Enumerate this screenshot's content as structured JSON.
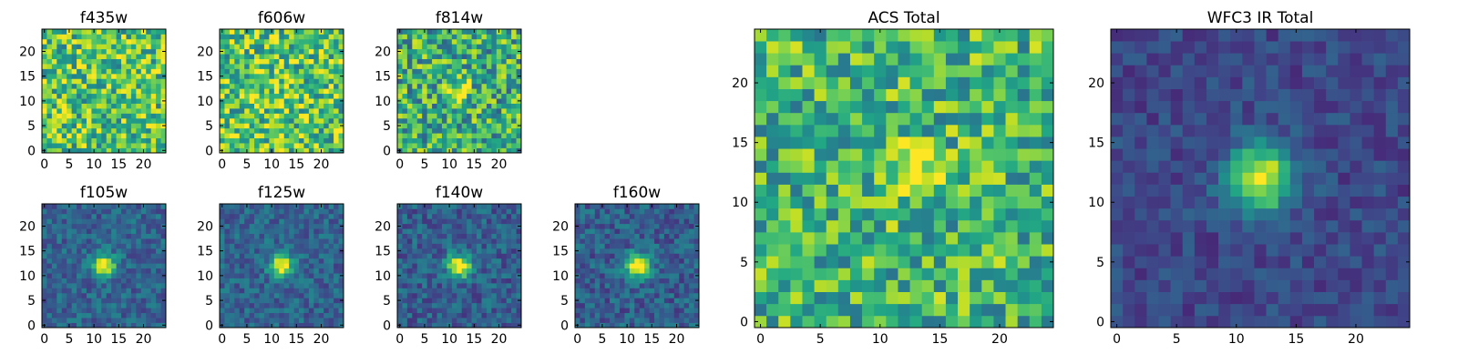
{
  "chart_data": [
    {
      "type": "heatmap",
      "title": "f435w",
      "colormap": "viridis",
      "grid_size": 25,
      "xlim": [
        0,
        24
      ],
      "ylim": [
        0,
        24
      ],
      "xticks": [
        0,
        5,
        10,
        15,
        20
      ],
      "yticks": [
        0,
        5,
        10,
        15,
        20
      ],
      "source_center": [
        12,
        12
      ],
      "source_peak": 0.0,
      "source_width": 2.0,
      "noise_mean": 0.72,
      "noise_amp": 0.32
    },
    {
      "type": "heatmap",
      "title": "f606w",
      "colormap": "viridis",
      "grid_size": 25,
      "xlim": [
        0,
        24
      ],
      "ylim": [
        0,
        24
      ],
      "xticks": [
        0,
        5,
        10,
        15,
        20
      ],
      "yticks": [
        0,
        5,
        10,
        15,
        20
      ],
      "source_center": [
        12,
        12
      ],
      "source_peak": 0.1,
      "source_width": 2.0,
      "noise_mean": 0.72,
      "noise_amp": 0.32
    },
    {
      "type": "heatmap",
      "title": "f814w",
      "colormap": "viridis",
      "grid_size": 25,
      "xlim": [
        0,
        24
      ],
      "ylim": [
        0,
        24
      ],
      "xticks": [
        0,
        5,
        10,
        15,
        20
      ],
      "yticks": [
        0,
        5,
        10,
        15,
        20
      ],
      "source_center": [
        12,
        12
      ],
      "source_peak": 0.35,
      "source_width": 1.6,
      "noise_mean": 0.62,
      "noise_amp": 0.32
    },
    {
      "type": "heatmap",
      "title": "f105w",
      "colormap": "viridis",
      "grid_size": 25,
      "xlim": [
        0,
        24
      ],
      "ylim": [
        0,
        24
      ],
      "xticks": [
        0,
        5,
        10,
        15,
        20
      ],
      "yticks": [
        0,
        5,
        10,
        15,
        20
      ],
      "source_center": [
        12,
        12
      ],
      "source_peak": 0.75,
      "source_width": 1.6,
      "noise_mean": 0.32,
      "noise_amp": 0.14
    },
    {
      "type": "heatmap",
      "title": "f125w",
      "colormap": "viridis",
      "grid_size": 25,
      "xlim": [
        0,
        24
      ],
      "ylim": [
        0,
        24
      ],
      "xticks": [
        0,
        5,
        10,
        15,
        20
      ],
      "yticks": [
        0,
        5,
        10,
        15,
        20
      ],
      "source_center": [
        12,
        12
      ],
      "source_peak": 0.75,
      "source_width": 1.6,
      "noise_mean": 0.32,
      "noise_amp": 0.14
    },
    {
      "type": "heatmap",
      "title": "f140w",
      "colormap": "viridis",
      "grid_size": 25,
      "xlim": [
        0,
        24
      ],
      "ylim": [
        0,
        24
      ],
      "xticks": [
        0,
        5,
        10,
        15,
        20
      ],
      "yticks": [
        0,
        5,
        10,
        15,
        20
      ],
      "source_center": [
        12,
        12
      ],
      "source_peak": 0.75,
      "source_width": 1.7,
      "noise_mean": 0.3,
      "noise_amp": 0.15
    },
    {
      "type": "heatmap",
      "title": "f160w",
      "colormap": "viridis",
      "grid_size": 25,
      "xlim": [
        0,
        24
      ],
      "ylim": [
        0,
        24
      ],
      "xticks": [
        0,
        5,
        10,
        15,
        20
      ],
      "yticks": [
        0,
        5,
        10,
        15,
        20
      ],
      "source_center": [
        12,
        12
      ],
      "source_peak": 0.75,
      "source_width": 1.7,
      "noise_mean": 0.3,
      "noise_amp": 0.15
    },
    {
      "type": "heatmap",
      "title": "ACS Total",
      "colormap": "viridis",
      "grid_size": 25,
      "xlim": [
        0,
        24
      ],
      "ylim": [
        0,
        24
      ],
      "xticks": [
        0,
        5,
        10,
        15,
        20
      ],
      "yticks": [
        0,
        5,
        10,
        15,
        20
      ],
      "source_center": [
        12.5,
        12.5
      ],
      "source_peak": 0.35,
      "source_width": 1.6,
      "noise_mean": 0.66,
      "noise_amp": 0.28
    },
    {
      "type": "heatmap",
      "title": "WFC3 IR Total",
      "colormap": "viridis",
      "grid_size": 25,
      "xlim": [
        0,
        24
      ],
      "ylim": [
        0,
        24
      ],
      "xticks": [
        0,
        5,
        10,
        15,
        20
      ],
      "yticks": [
        0,
        5,
        10,
        15,
        20
      ],
      "source_center": [
        12,
        12
      ],
      "source_peak": 0.78,
      "source_width": 1.9,
      "noise_mean": 0.22,
      "noise_amp": 0.1
    }
  ]
}
